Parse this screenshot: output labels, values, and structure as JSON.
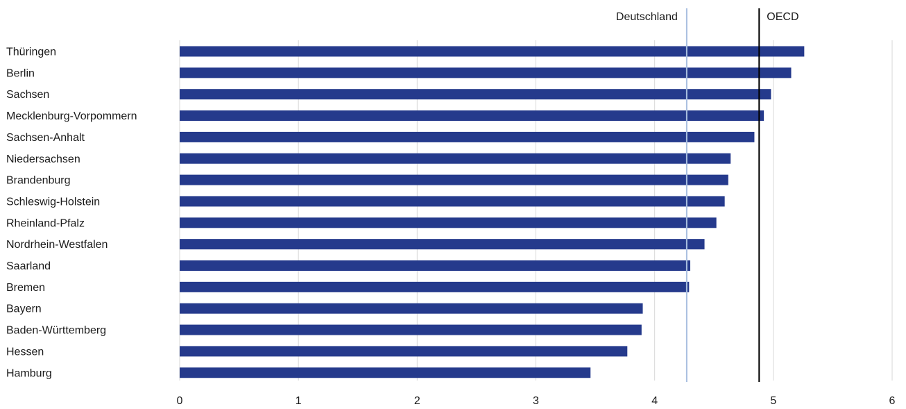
{
  "chart_data": {
    "type": "bar",
    "orientation": "horizontal",
    "categories": [
      "Thüringen",
      "Berlin",
      "Sachsen",
      "Mecklenburg-Vorpommern",
      "Sachsen-Anhalt",
      "Niedersachsen",
      "Brandenburg",
      "Schleswig-Holstein",
      "Rheinland-Pfalz",
      "Nordrhein-Westfalen",
      "Saarland",
      "Bremen",
      "Bayern",
      "Baden-Württemberg",
      "Hessen",
      "Hamburg"
    ],
    "values": [
      5.26,
      5.15,
      4.98,
      4.92,
      4.84,
      4.64,
      4.62,
      4.59,
      4.52,
      4.42,
      4.3,
      4.29,
      3.9,
      3.89,
      3.77,
      3.46
    ],
    "xlim": [
      0,
      6
    ],
    "xticks": [
      "0",
      "1",
      "2",
      "3",
      "4",
      "5",
      "6"
    ],
    "grid": true,
    "bar_color": "#253a8c",
    "reference_lines": [
      {
        "label": "Deutschland",
        "value": 4.27,
        "color": "#a9bfe0"
      },
      {
        "label": "OECD",
        "value": 4.88,
        "color": "#000000"
      }
    ]
  }
}
